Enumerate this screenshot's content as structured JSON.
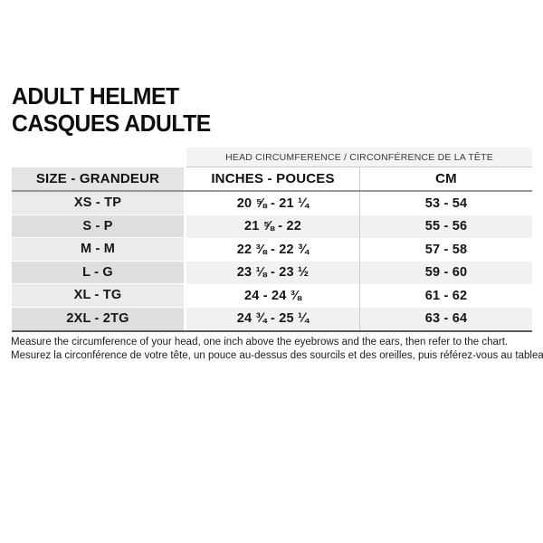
{
  "page": {
    "title_line1": "ADULT HELMET",
    "title_line2": "CASQUES ADULTE"
  },
  "table": {
    "band_header": "HEAD CIRCUMFERENCE / CIRCONFÉRENCE DE LA TÊTE",
    "columns": {
      "size": "SIZE - GRANDEUR",
      "inches": "INCHES - POUCES",
      "cm": "CM"
    },
    "rows": [
      {
        "size": "XS - TP",
        "inches": "20 ⅝ - 21 ¼",
        "cm": "53 - 54"
      },
      {
        "size": "S - P",
        "inches": "21 ⅝ - 22",
        "cm": "55 - 56"
      },
      {
        "size": "M - M",
        "inches": "22 ⅜ - 22 ¾",
        "cm": "57 - 58"
      },
      {
        "size": "L - G",
        "inches": "23 ⅛ - 23 ½",
        "cm": "59 - 60"
      },
      {
        "size": "XL - TG",
        "inches": "24 - 24 ⅜",
        "cm": "61 - 62"
      },
      {
        "size": "2XL - 2TG",
        "inches": "24 ¾ - 25 ¼",
        "cm": "63 - 64"
      }
    ]
  },
  "footer": {
    "line1_en": "Measure the circumference of your head, one inch above the eyebrows and the ears, then refer to the chart.",
    "line2_fr": "Mesurez la circonférence de votre tête, un pouce au-dessus des sourcils et des oreilles, puis référez-vous au tableau."
  }
}
